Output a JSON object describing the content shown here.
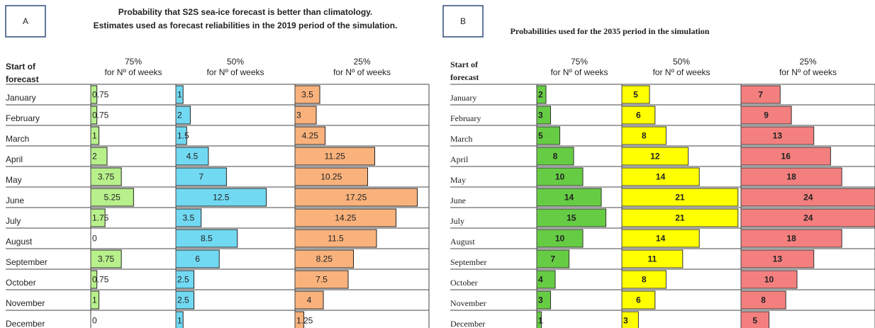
{
  "chart_data": [
    {
      "type": "bar",
      "panel_label": "A",
      "title": [
        "Probability that S2S sea-ice forecast is better than climatology.",
        "Estimates used as forecast reliabilities in the 2019 period of the simulation."
      ],
      "row_header": [
        "Start of",
        "forecast"
      ],
      "unit_label": "for Nº of weeks",
      "categories": [
        "January",
        "February",
        "March",
        "April",
        "May",
        "June",
        "July",
        "August",
        "September",
        "October",
        "November",
        "December"
      ],
      "series": [
        {
          "name": "75%",
          "color": "#b8f08c",
          "values": [
            0.75,
            0.75,
            1,
            2,
            3.75,
            5.25,
            1.75,
            0,
            3.75,
            0.75,
            1,
            0
          ]
        },
        {
          "name": "50%",
          "color": "#72d9f2",
          "values": [
            1,
            2,
            1.5,
            4.5,
            7,
            12.5,
            3.5,
            8.5,
            6,
            2.5,
            2.5,
            1
          ]
        },
        {
          "name": "25%",
          "color": "#f9b27c",
          "values": [
            3.5,
            3,
            4.25,
            11.25,
            10.25,
            17.25,
            14.25,
            11.5,
            8.25,
            7.5,
            4,
            1.25
          ]
        }
      ]
    },
    {
      "type": "bar",
      "panel_label": "B",
      "title": [
        "Probabilities used for the 2035 period in the simulation"
      ],
      "row_header": [
        "Start of",
        "forecast"
      ],
      "unit_label": "for Nº of weeks",
      "categories": [
        "January",
        "February",
        "March",
        "April",
        "May",
        "June",
        "July",
        "August",
        "September",
        "October",
        "November",
        "December"
      ],
      "series": [
        {
          "name": "75%",
          "color": "#66cc44",
          "values": [
            2,
            3,
            5,
            8,
            10,
            14,
            15,
            10,
            7,
            4,
            3,
            1
          ]
        },
        {
          "name": "50%",
          "color": "#ffff00",
          "values": [
            5,
            6,
            8,
            12,
            14,
            21,
            21,
            14,
            11,
            8,
            6,
            3
          ]
        },
        {
          "name": "25%",
          "color": "#f47f7f",
          "values": [
            7,
            9,
            13,
            16,
            18,
            24,
            24,
            18,
            13,
            10,
            8,
            5
          ]
        }
      ]
    }
  ]
}
